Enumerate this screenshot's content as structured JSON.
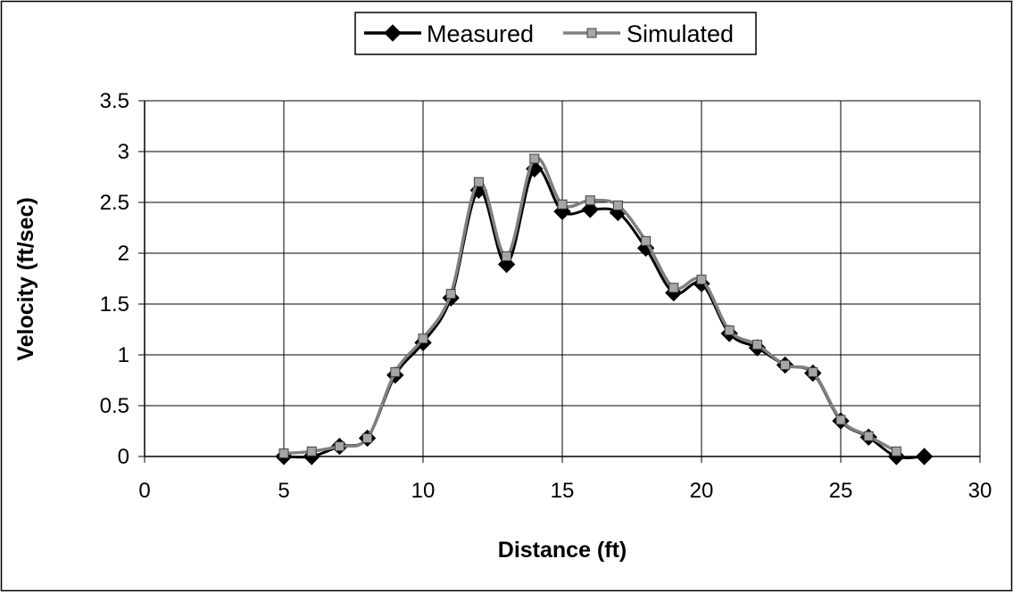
{
  "chart_data": {
    "type": "line",
    "title": "",
    "xlabel": "Distance (ft)",
    "ylabel": "Velocity (ft/sec)",
    "xlim": [
      0,
      30
    ],
    "ylim": [
      0,
      3.5
    ],
    "x_ticks": [
      "0",
      "5",
      "10",
      "15",
      "20",
      "25",
      "30"
    ],
    "y_ticks": [
      "0",
      "0.5",
      "1",
      "1.5",
      "2",
      "2.5",
      "3",
      "3.5"
    ],
    "grid": true,
    "smooth": true,
    "legend_position": "top-center",
    "x": [
      5,
      6,
      7,
      8,
      9,
      10,
      11,
      12,
      13,
      14,
      15,
      16,
      17,
      18,
      19,
      20,
      21,
      22,
      23,
      24,
      25,
      26,
      27,
      28
    ],
    "series": [
      {
        "name": "Measured",
        "marker": "diamond",
        "color": "#000000",
        "values": [
          0.0,
          0.0,
          0.1,
          0.18,
          0.8,
          1.12,
          1.56,
          2.62,
          1.89,
          2.83,
          2.41,
          2.43,
          2.4,
          2.05,
          1.61,
          1.7,
          1.21,
          1.07,
          0.9,
          0.82,
          0.35,
          0.19,
          0.0,
          0.0
        ]
      },
      {
        "name": "Simulated",
        "marker": "square",
        "color": "#808080",
        "values": [
          0.03,
          0.05,
          0.1,
          0.18,
          0.83,
          1.16,
          1.6,
          2.7,
          1.97,
          2.93,
          2.48,
          2.52,
          2.47,
          2.12,
          1.66,
          1.74,
          1.24,
          1.1,
          0.9,
          0.83,
          0.36,
          0.2,
          0.05,
          null
        ]
      }
    ]
  }
}
